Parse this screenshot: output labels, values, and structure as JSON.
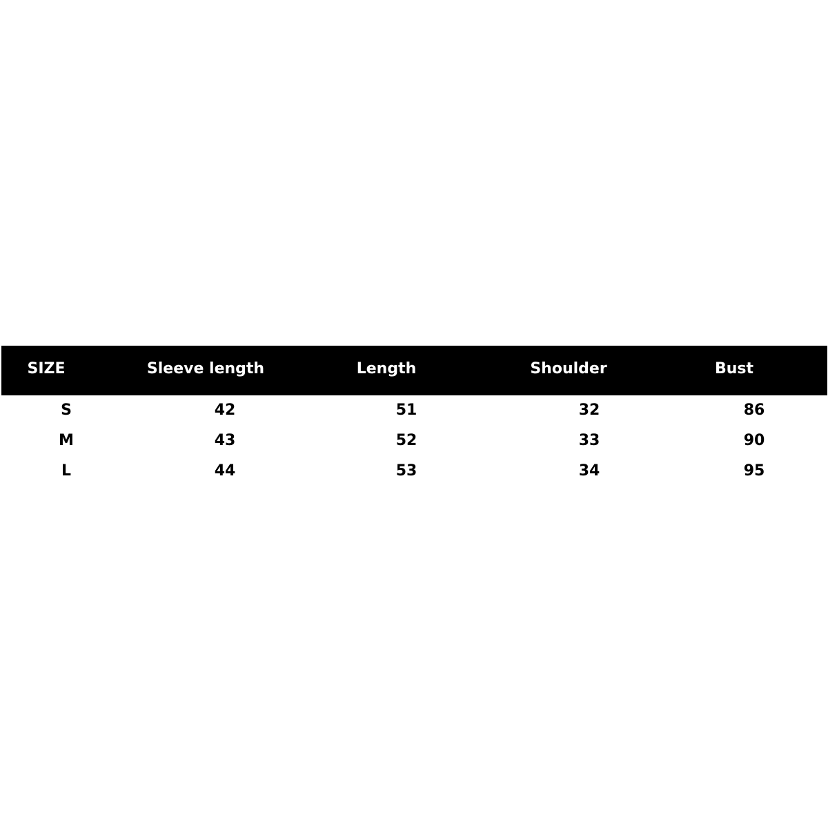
{
  "table": {
    "header": [
      "SIZE",
      "Sleeve length",
      "Length",
      "Shoulder",
      "Bust"
    ],
    "rows": [
      [
        "S",
        "42",
        "51",
        "32",
        "86"
      ],
      [
        "M",
        "43",
        "52",
        "33",
        "90"
      ],
      [
        "L",
        "44",
        "53",
        "34",
        "95"
      ]
    ]
  }
}
